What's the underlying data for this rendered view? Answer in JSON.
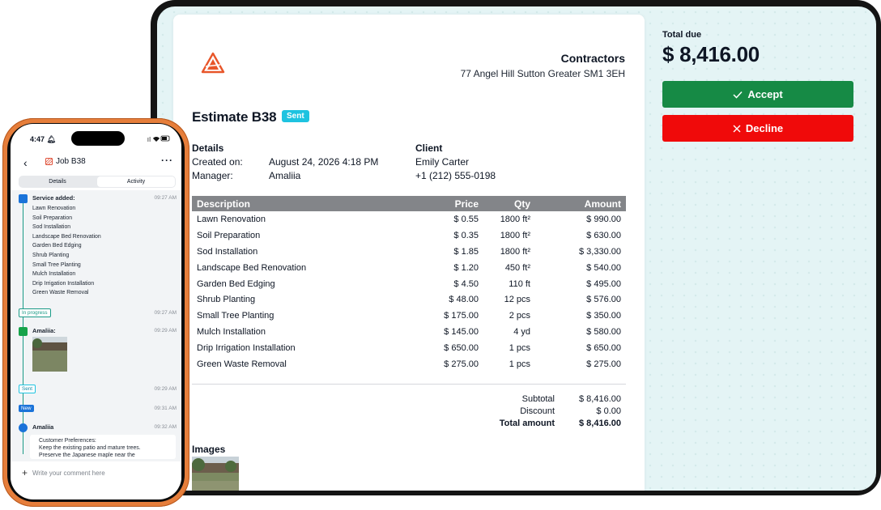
{
  "company": {
    "name": "Contractors",
    "address": "77 Angel Hill Sutton Greater SM1 3EH"
  },
  "estimate": {
    "title": "Estimate B38",
    "status": "Sent"
  },
  "details": {
    "heading": "Details",
    "created_label": "Created on:",
    "created_value": "August 24, 2026 4:18 PM",
    "manager_label": "Manager:",
    "manager_value": "Amaliia"
  },
  "client": {
    "heading": "Client",
    "name": "Emily Carter",
    "phone": "+1 (212) 555-0198"
  },
  "table": {
    "headers": [
      "Description",
      "Price",
      "Qty",
      "Amount"
    ],
    "rows": [
      [
        "Lawn Renovation",
        "$ 0.55",
        "1800 ft²",
        "$ 990.00"
      ],
      [
        "Soil Preparation",
        "$ 0.35",
        "1800 ft²",
        "$ 630.00"
      ],
      [
        "Sod Installation",
        "$ 1.85",
        "1800 ft²",
        "$ 3,330.00"
      ],
      [
        "Landscape Bed Renovation",
        "$ 1.20",
        "450 ft²",
        "$ 540.00"
      ],
      [
        "Garden Bed Edging",
        "$ 4.50",
        "110 ft",
        "$ 495.00"
      ],
      [
        "Shrub Planting",
        "$ 48.00",
        "12 pcs",
        "$ 576.00"
      ],
      [
        "Small Tree Planting",
        "$ 175.00",
        "2 pcs",
        "$ 350.00"
      ],
      [
        "Mulch Installation",
        "$ 145.00",
        "4 yd",
        "$ 580.00"
      ],
      [
        "Drip Irrigation Installation",
        "$ 650.00",
        "1 pcs",
        "$ 650.00"
      ],
      [
        "Green Waste Removal",
        "$ 275.00",
        "1 pcs",
        "$ 275.00"
      ]
    ]
  },
  "totals": {
    "subtotal_label": "Subtotal",
    "subtotal": "$ 8,416.00",
    "discount_label": "Discount",
    "discount": "$ 0.00",
    "total_label": "Total amount",
    "total": "$ 8,416.00"
  },
  "images_heading": "Images",
  "due": {
    "label": "Total due",
    "value": "$ 8,416.00"
  },
  "actions": {
    "accept": "Accept",
    "decline": "Decline"
  },
  "colors": {
    "accent_green": "#168a45",
    "decline_red": "#f00a0a",
    "badge_cyan": "#1ec3e0",
    "timeline_teal": "#1a9a86",
    "phone_frame_orange": "#e67e3b"
  },
  "phone": {
    "time": "4:47",
    "status_icons": "wifi-battery",
    "header_title": "Job B38",
    "tabs": [
      "Details",
      "Activity"
    ],
    "active_tab": "Activity",
    "feed": {
      "service_added_title": "Service added:",
      "service_added_time": "09:27 AM",
      "services": [
        "Lawn Renovation",
        "Soil Preparation",
        "Sod Installation",
        "Landscape Bed Renovation",
        "Garden Bed Edging",
        "Shrub Planting",
        "Small Tree Planting",
        "Mulch Installation",
        "Drip Irrigation Installation",
        "Green Waste Removal"
      ],
      "in_progress_label": "In progress",
      "in_progress_time": "09:27 AM",
      "photo_author": "Amaliia:",
      "photo_time": "09:29 AM",
      "sent_label": "Sent",
      "sent_time": "09:29 AM",
      "new_label": "New",
      "new_time": "09:31 AM",
      "comment_author": "Amaliia",
      "comment_time": "09:32 AM",
      "comment_lines": [
        "Customer Preferences:",
        "Keep the existing patio and mature trees.",
        "Preserve the Japanese maple near the"
      ]
    },
    "comment_placeholder": "Write your comment here"
  }
}
